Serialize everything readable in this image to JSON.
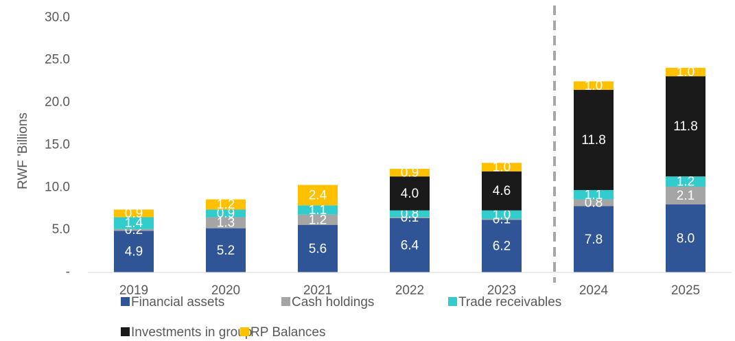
{
  "chart_data": {
    "type": "stacked_bar",
    "y_label": "RWF 'Billions",
    "categories": [
      "2019",
      "2020",
      "2021",
      "2022",
      "2023",
      "2024",
      "2025"
    ],
    "series": [
      {
        "name": "Financial assets",
        "color": "#2f5597",
        "values": [
          4.9,
          5.2,
          5.6,
          6.4,
          6.2,
          7.8,
          8.0
        ],
        "value_labels": [
          "4.9",
          "5.2",
          "5.6",
          "6.4",
          "6.2",
          "7.8",
          "8.0"
        ]
      },
      {
        "name": "Cash holdings",
        "color": "#a5a5a5",
        "values": [
          0.2,
          1.3,
          1.2,
          0.1,
          0.1,
          0.8,
          2.1
        ],
        "value_labels": [
          "0.2",
          "1.3",
          "1.2",
          "0.1",
          "0.1",
          "0.8",
          "2.1"
        ]
      },
      {
        "name": "Trade receivables",
        "color": "#33cccc",
        "values": [
          1.4,
          0.9,
          1.1,
          0.8,
          1.0,
          1.1,
          1.2
        ],
        "value_labels": [
          "1.4",
          "0.9",
          "1.1",
          "0.8",
          "1.0",
          "1.1",
          "1.2"
        ]
      },
      {
        "name": "Investments in group",
        "color": "#1a1a1a",
        "values": [
          null,
          null,
          null,
          4.0,
          4.6,
          11.8,
          11.8
        ],
        "value_labels": [
          null,
          null,
          null,
          "4.0",
          "4.6",
          "11.8",
          "11.8"
        ]
      },
      {
        "name": "RP Balances",
        "color": "#ffc000",
        "values": [
          0.9,
          1.2,
          2.4,
          0.9,
          1.0,
          1.0,
          1.0
        ],
        "value_labels": [
          "0.9",
          "1.2",
          "2.4",
          "0.9",
          "1.0",
          "1.0",
          "1.0"
        ]
      }
    ],
    "ylim": [
      0,
      32
    ],
    "yticks": [
      {
        "value": 0,
        "label": "-"
      },
      {
        "value": 5,
        "label": "5.0"
      },
      {
        "value": 10,
        "label": "10.0"
      },
      {
        "value": 15,
        "label": "15.0"
      },
      {
        "value": 20,
        "label": "20.0"
      },
      {
        "value": 25,
        "label": "25.0"
      },
      {
        "value": 30,
        "label": "30.0"
      }
    ],
    "grid": false
  }
}
